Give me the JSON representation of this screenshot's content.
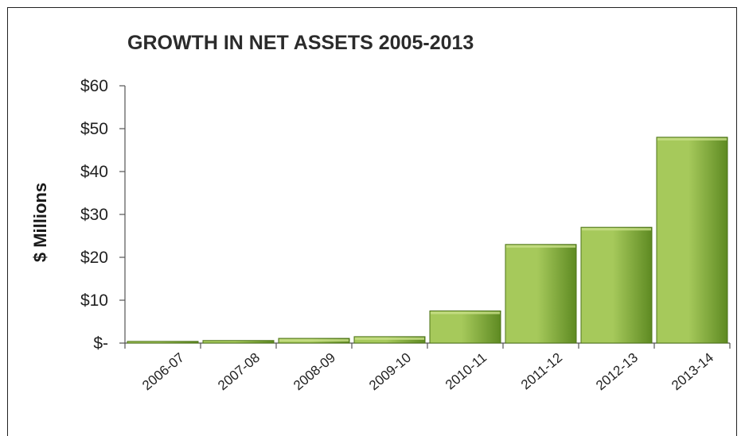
{
  "chart_data": {
    "type": "bar",
    "title": "GROWTH IN NET ASSETS 2005-2013",
    "xlabel": "",
    "ylabel": "$ Millions",
    "categories": [
      "2006-07",
      "2007-08",
      "2008-09",
      "2009-10",
      "2010-11",
      "2011-12",
      "2012-13",
      "2013-14"
    ],
    "values": [
      0.4,
      0.6,
      1.1,
      1.5,
      7.5,
      23,
      27,
      48
    ],
    "ylim": [
      0,
      60
    ],
    "yticks": [
      0,
      10,
      20,
      30,
      40,
      50,
      60
    ],
    "ytick_labels": [
      "$-",
      "$10",
      "$20",
      "$30",
      "$40",
      "$50",
      "$60"
    ],
    "grid": false,
    "legend": "none",
    "colors": {
      "bar_fill_light": "#a6c95b",
      "bar_fill_dark": "#5e8a22",
      "bar_stroke": "#4d7318",
      "axis": "#555555"
    }
  }
}
